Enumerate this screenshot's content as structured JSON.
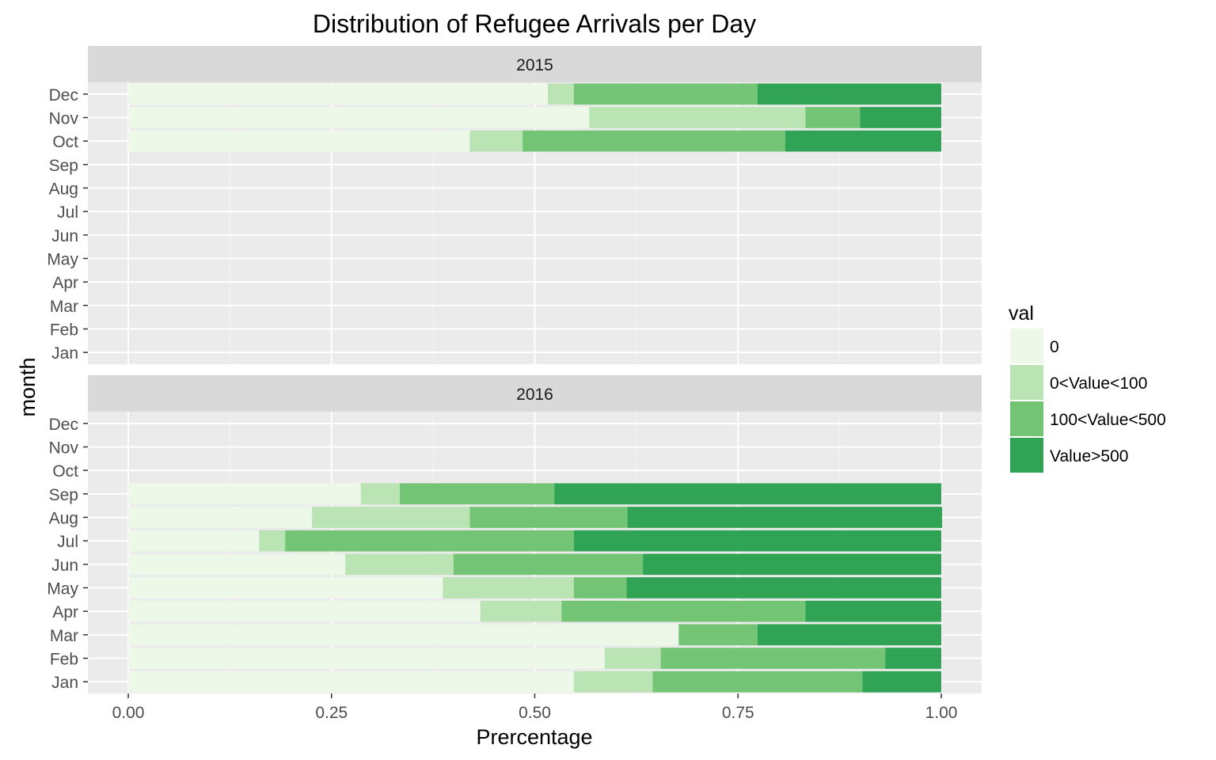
{
  "chart_data": {
    "type": "bar",
    "orientation": "horizontal",
    "stacked": true,
    "title": "Distribution of Refugee Arrivals per Day",
    "xlabel": "Prercentage",
    "ylabel": "month",
    "xlim": [
      0,
      1
    ],
    "x_ticks": [
      "0.00",
      "0.25",
      "0.50",
      "0.75",
      "1.00"
    ],
    "x_tick_values": [
      0,
      0.25,
      0.5,
      0.75,
      1.0
    ],
    "categories": [
      "Jan",
      "Feb",
      "Mar",
      "Apr",
      "May",
      "Jun",
      "Jul",
      "Aug",
      "Sep",
      "Oct",
      "Nov",
      "Dec"
    ],
    "legend": {
      "title": "val",
      "placement": "right",
      "entries": [
        {
          "label": "0",
          "color": "#edf8e9"
        },
        {
          "label": "0<Value<100",
          "color": "#bae4b3"
        },
        {
          "label": "100<Value<500",
          "color": "#74c476"
        },
        {
          "label": "Value>500",
          "color": "#31a354"
        }
      ]
    },
    "grid": true,
    "panel_background": "#ebebeb",
    "strip_background": "#d9d9d9",
    "facets": [
      {
        "label": "2015",
        "bars": [
          {
            "month": "Oct",
            "values": [
              0.42,
              0.065,
              0.323,
              0.192
            ]
          },
          {
            "month": "Nov",
            "values": [
              0.567,
              0.266,
              0.067,
              0.1
            ]
          },
          {
            "month": "Dec",
            "values": [
              0.516,
              0.032,
              0.226,
              0.226
            ]
          }
        ]
      },
      {
        "label": "2016",
        "bars": [
          {
            "month": "Jan",
            "values": [
              0.548,
              0.097,
              0.258,
              0.097
            ]
          },
          {
            "month": "Feb",
            "values": [
              0.586,
              0.069,
              0.276,
              0.069
            ]
          },
          {
            "month": "Mar",
            "values": [
              0.677,
              0.0,
              0.097,
              0.226
            ]
          },
          {
            "month": "Apr",
            "values": [
              0.433,
              0.1,
              0.3,
              0.167
            ]
          },
          {
            "month": "May",
            "values": [
              0.387,
              0.161,
              0.065,
              0.387
            ]
          },
          {
            "month": "Jun",
            "values": [
              0.267,
              0.133,
              0.233,
              0.367
            ]
          },
          {
            "month": "Jul",
            "values": [
              0.161,
              0.032,
              0.355,
              0.452
            ]
          },
          {
            "month": "Aug",
            "values": [
              0.226,
              0.194,
              0.194,
              0.387
            ]
          },
          {
            "month": "Sep",
            "values": [
              0.286,
              0.048,
              0.19,
              0.476
            ]
          }
        ]
      }
    ]
  }
}
